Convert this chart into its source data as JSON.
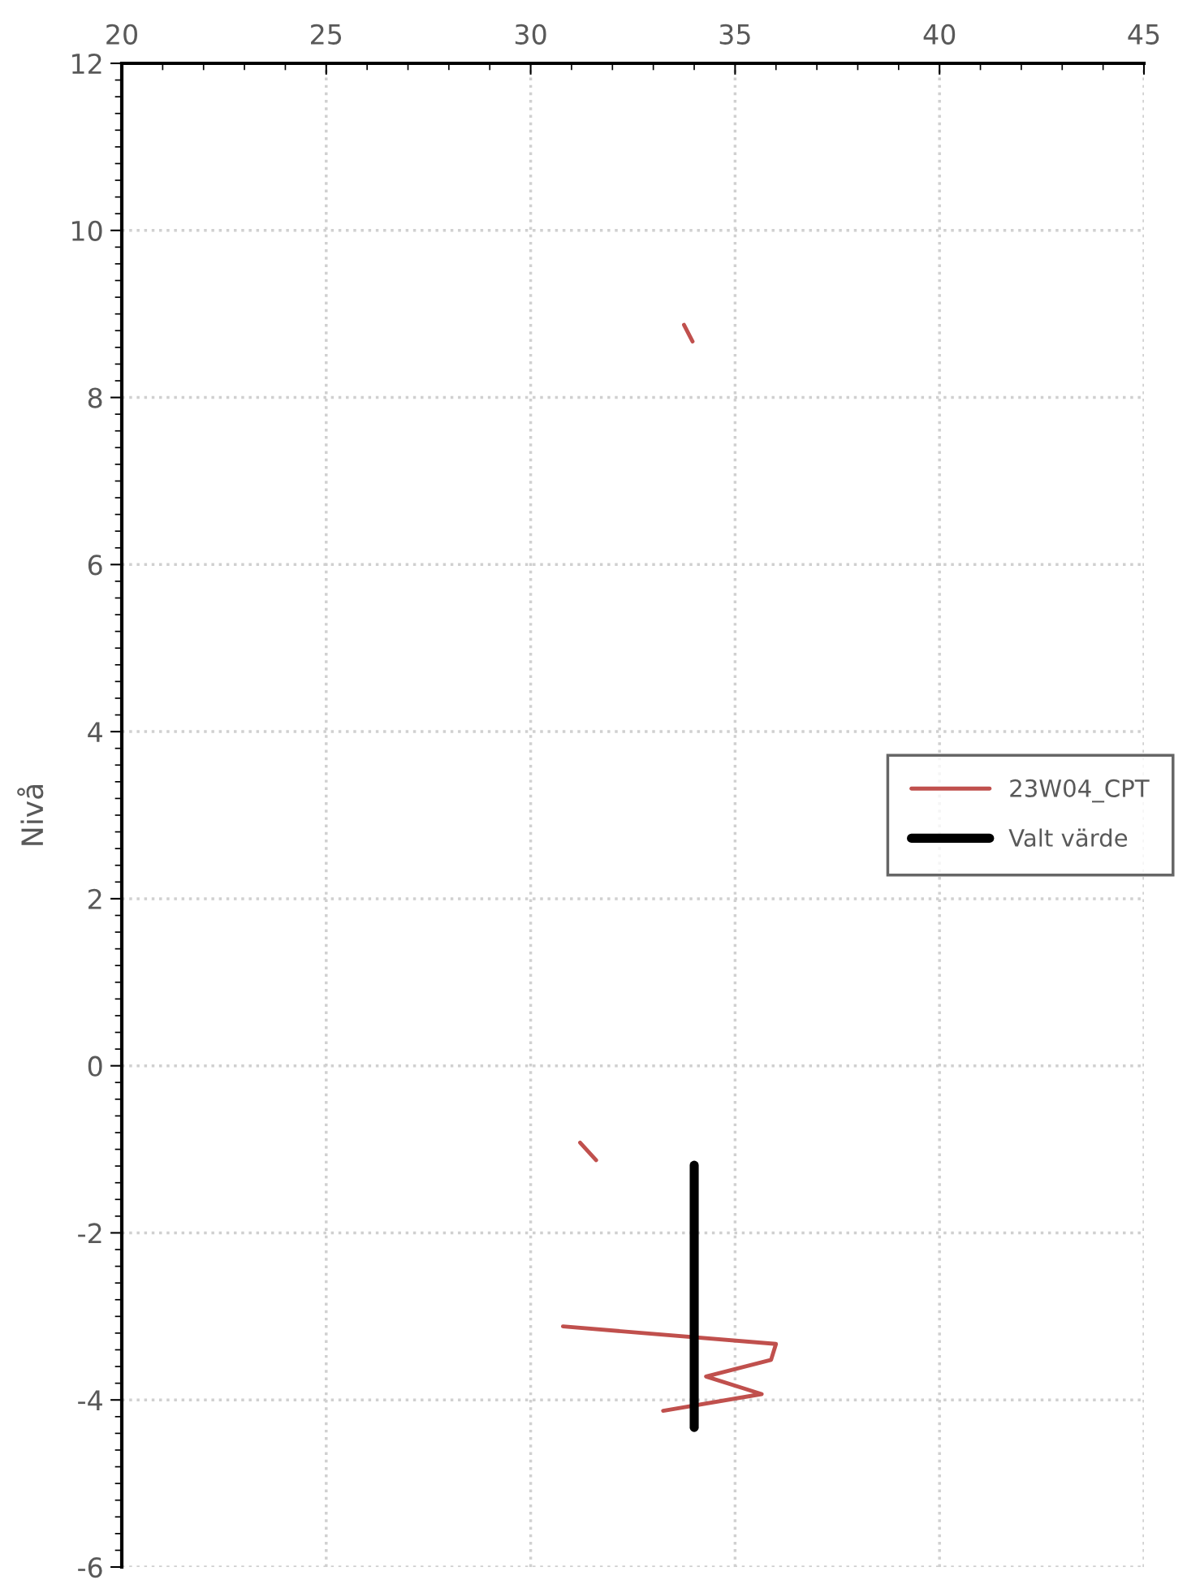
{
  "chart_data": {
    "type": "line",
    "ylabel": "Nivå",
    "series": [
      {
        "name": "23W04_CPT",
        "color": "#c0504d",
        "x": [
          33.75,
          33.96,
          null,
          31.21,
          31.6,
          null,
          30.79,
          36.0,
          35.88,
          34.29,
          35.65,
          33.24
        ],
        "values": [
          8.87,
          8.67,
          null,
          -0.92,
          -1.13,
          null,
          -3.12,
          -3.33,
          -3.52,
          -3.72,
          -3.93,
          -4.13
        ]
      },
      {
        "name": "Valt värde",
        "color": "#000000",
        "x": [
          34.0,
          34.0
        ],
        "values": [
          -1.19,
          -4.33
        ]
      }
    ],
    "xlim": [
      20,
      45
    ],
    "xticks": [
      20,
      25,
      30,
      35,
      40,
      45
    ],
    "ylim": [
      -6,
      12
    ],
    "yticks": [
      -6,
      -4,
      -2,
      0,
      2,
      4,
      6,
      8,
      10,
      12
    ],
    "grid": true,
    "legend": "right",
    "line_style": "solid",
    "marker": "none"
  }
}
